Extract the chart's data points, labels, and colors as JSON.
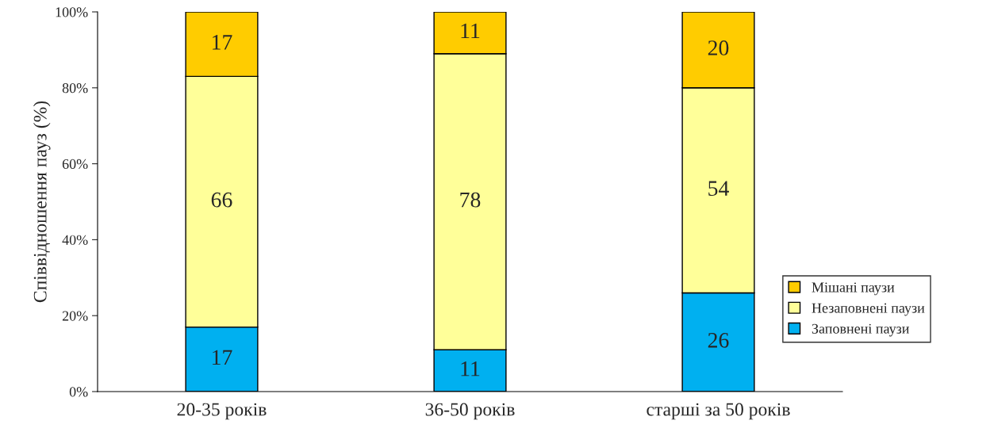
{
  "chart_data": {
    "type": "bar",
    "stacked": true,
    "ylabel": "Співвідношення пауз (%)",
    "categories": [
      "20-35 років",
      "36-50 років",
      "старші за 50 років"
    ],
    "series": [
      {
        "name": "Заповнені паузи",
        "color": "#00b0f0",
        "values": [
          17,
          11,
          26
        ]
      },
      {
        "name": "Незаповнені паузи",
        "color": "#ffff99",
        "values": [
          66,
          78,
          54
        ]
      },
      {
        "name": "Мішані паузи",
        "color": "#ffcc00",
        "values": [
          17,
          11,
          20
        ]
      }
    ],
    "ylim": [
      0,
      100
    ],
    "yticks": [
      {
        "value": 0,
        "label": "0%"
      },
      {
        "value": 20,
        "label": "20%"
      },
      {
        "value": 40,
        "label": "40%"
      },
      {
        "value": 60,
        "label": "60%"
      },
      {
        "value": 80,
        "label": "80%"
      },
      {
        "value": 100,
        "label": "100%"
      }
    ],
    "data_labels": true,
    "grid": false,
    "legend": "bottom right"
  }
}
